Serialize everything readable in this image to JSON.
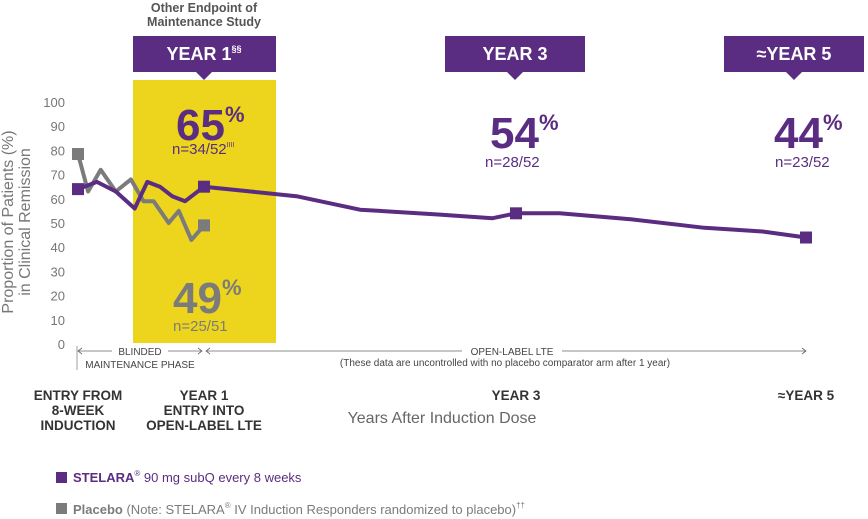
{
  "chart_data": {
    "type": "line",
    "ylabel_line1": "Proportion of Patients (%)",
    "ylabel_line2": "in Clinical Remission",
    "xlabel": "Years After Induction Dose",
    "ylim": [
      0,
      100
    ],
    "yticks": [
      "0",
      "10",
      "20",
      "30",
      "40",
      "50",
      "60",
      "70",
      "80",
      "90",
      "100"
    ],
    "x_categories": [
      {
        "lines": [
          "ENTRY FROM",
          "8-WEEK",
          "INDUCTION"
        ],
        "x": 0
      },
      {
        "lines": [
          "YEAR 1",
          "ENTRY INTO",
          "OPEN-LABEL LTE"
        ],
        "x": 1
      },
      {
        "lines": [
          "YEAR 3"
        ],
        "x": 3
      },
      {
        "lines": [
          "≈YEAR 5"
        ],
        "x": 5
      }
    ],
    "series": [
      {
        "name": "STELARA® 90 mg subQ every 8 weeks",
        "color": "#5a2d82",
        "points": [
          [
            0,
            64
          ],
          [
            0.15,
            67
          ],
          [
            0.3,
            63
          ],
          [
            0.45,
            56
          ],
          [
            0.55,
            67
          ],
          [
            0.65,
            65
          ],
          [
            0.75,
            61
          ],
          [
            0.85,
            59
          ],
          [
            1.0,
            65
          ],
          [
            1.3,
            63
          ],
          [
            1.6,
            61
          ],
          [
            2.0,
            55.5
          ],
          [
            2.5,
            53.5
          ],
          [
            2.85,
            52
          ],
          [
            3.0,
            54
          ],
          [
            3.3,
            54
          ],
          [
            3.8,
            51.5
          ],
          [
            4.3,
            48
          ],
          [
            4.7,
            46.5
          ],
          [
            5.0,
            44
          ]
        ],
        "markers": [
          [
            0,
            64
          ],
          [
            1.0,
            65
          ],
          [
            3.0,
            54
          ],
          [
            5.0,
            44
          ]
        ]
      },
      {
        "name": "Placebo",
        "color": "#7b7b7b",
        "points": [
          [
            0,
            78.5
          ],
          [
            0.08,
            63
          ],
          [
            0.18,
            72
          ],
          [
            0.3,
            63
          ],
          [
            0.42,
            68
          ],
          [
            0.52,
            59
          ],
          [
            0.6,
            59
          ],
          [
            0.72,
            50
          ],
          [
            0.8,
            55
          ],
          [
            0.9,
            43
          ],
          [
            1.0,
            49
          ]
        ],
        "markers": [
          [
            0,
            78.5
          ],
          [
            1.0,
            49
          ]
        ]
      }
    ],
    "callouts": {
      "stelara_y1": {
        "pct": "65",
        "sign": "%",
        "n": "n=34/52",
        "sup": "IIII"
      },
      "placebo_y1": {
        "pct": "49",
        "sign": "%",
        "n": "n=25/51"
      },
      "stelara_y3": {
        "pct": "54",
        "sign": "%",
        "n": "n=28/52"
      },
      "stelara_y5": {
        "pct": "44",
        "sign": "%",
        "n": "n=23/52"
      }
    },
    "banners": {
      "other_endpoint_line1": "Other Endpoint of",
      "other_endpoint_line2": "Maintenance Study",
      "year1": "YEAR 1",
      "year1_sup": "§§",
      "year3": "YEAR 3",
      "year5": "≈YEAR 5"
    },
    "phases": {
      "blinded_line1": "BLINDED",
      "blinded_line2": "MAINTENANCE PHASE",
      "open_line1": "OPEN-LABEL LTE",
      "open_line2": "(These data are uncontrolled with no placebo comparator arm after 1 year)"
    },
    "legend": [
      {
        "main": "STELARA",
        "sup": "®",
        "rest": " 90 mg subQ every 8 weeks",
        "color": "#5a2d82"
      },
      {
        "main": "Placebo",
        "rest": " (Note: STELARA",
        "sup": "®",
        "rest2": " IV Induction Responders randomized to placebo)",
        "sup2": "††",
        "color": "#7b7b7b"
      }
    ],
    "colors": {
      "stelara": "#5a2d82",
      "placebo": "#7b7b7b",
      "highlight": "#ecd51c"
    },
    "grid": false
  }
}
